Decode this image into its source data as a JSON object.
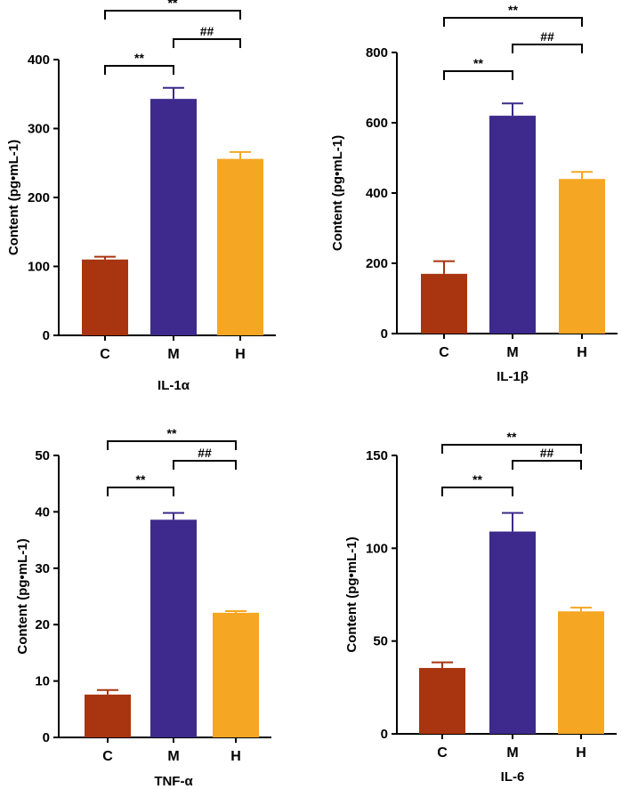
{
  "chart_data": [
    {
      "type": "bar",
      "title": "",
      "xlabel": "IL-1α",
      "ylabel": "Content (pg•mL-1)",
      "categories": [
        "C",
        "M",
        "H"
      ],
      "values": [
        110,
        343,
        256
      ],
      "errors": [
        4,
        16,
        10
      ],
      "colors": [
        "#A8350F",
        "#3D2A8C",
        "#F5A623"
      ],
      "ylim": [
        0,
        400
      ],
      "yticks": [
        "0",
        "100",
        "200",
        "300",
        "400"
      ],
      "significance": [
        {
          "from": 0,
          "to": 2,
          "label": "**",
          "level": 2
        },
        {
          "from": 1,
          "to": 2,
          "label": "##",
          "level": 1
        },
        {
          "from": 0,
          "to": 1,
          "label": "**",
          "level": 1
        }
      ]
    },
    {
      "type": "bar",
      "title": "",
      "xlabel": "IL-1β",
      "ylabel": "Content (pg•mL-1)",
      "categories": [
        "C",
        "M",
        "H"
      ],
      "values": [
        170,
        620,
        440
      ],
      "errors": [
        36,
        35,
        20
      ],
      "colors": [
        "#A8350F",
        "#3D2A8C",
        "#F5A623"
      ],
      "ylim": [
        0,
        800
      ],
      "yticks": [
        "0",
        "200",
        "400",
        "600",
        "800"
      ],
      "significance": [
        {
          "from": 0,
          "to": 2,
          "label": "**",
          "level": 2
        },
        {
          "from": 1,
          "to": 2,
          "label": "##",
          "level": 1
        },
        {
          "from": 0,
          "to": 1,
          "label": "**",
          "level": 1
        }
      ]
    },
    {
      "type": "bar",
      "title": "",
      "xlabel": "TNF-α",
      "ylabel": "Content (pg•mL-1)",
      "categories": [
        "C",
        "M",
        "H"
      ],
      "values": [
        7.6,
        38.6,
        22.1
      ],
      "errors": [
        0.8,
        1.2,
        0.3
      ],
      "colors": [
        "#A8350F",
        "#3D2A8C",
        "#F5A623"
      ],
      "ylim": [
        0,
        50
      ],
      "yticks": [
        "0",
        "10",
        "20",
        "30",
        "40",
        "50"
      ],
      "significance": [
        {
          "from": 0,
          "to": 2,
          "label": "**",
          "level": 2
        },
        {
          "from": 1,
          "to": 2,
          "label": "##",
          "level": 1
        },
        {
          "from": 0,
          "to": 1,
          "label": "**",
          "level": 1
        }
      ]
    },
    {
      "type": "bar",
      "title": "",
      "xlabel": "IL-6",
      "ylabel": "Content (pg•mL-1)",
      "categories": [
        "C",
        "M",
        "H"
      ],
      "values": [
        35.5,
        109,
        66
      ],
      "errors": [
        3,
        10,
        2
      ],
      "colors": [
        "#A8350F",
        "#3D2A8C",
        "#F5A623"
      ],
      "ylim": [
        0,
        150
      ],
      "yticks": [
        "0",
        "50",
        "100",
        "150"
      ],
      "significance": [
        {
          "from": 0,
          "to": 2,
          "label": "**",
          "level": 2
        },
        {
          "from": 1,
          "to": 2,
          "label": "##",
          "level": 1
        },
        {
          "from": 0,
          "to": 1,
          "label": "**",
          "level": 1
        }
      ]
    }
  ]
}
